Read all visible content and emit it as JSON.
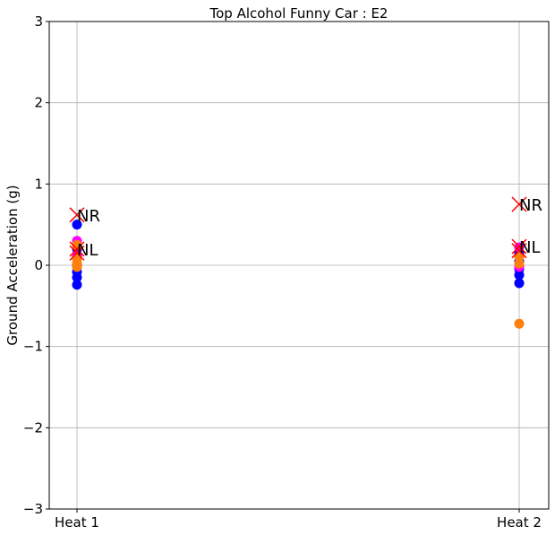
{
  "chart_data": {
    "type": "scatter",
    "title": "Top Alcohol Funny Car : E2",
    "xlabel": "",
    "ylabel": "Ground Acceleration (g)",
    "categories": [
      "Heat 1",
      "Heat 2"
    ],
    "ylim": [
      -3,
      3
    ],
    "yticks": [
      -3,
      -2,
      -1,
      0,
      1,
      2,
      3
    ],
    "grid": true,
    "colors": {
      "blue": "#0000ff",
      "magenta": "#ff00ff",
      "orange": "#ff7f0e",
      "red": "#ff0000"
    },
    "series": [
      {
        "color": "#0000ff",
        "marker": "circle",
        "points": [
          {
            "x": "Heat 1",
            "y": 0.5
          },
          {
            "x": "Heat 1",
            "y": 0.2
          },
          {
            "x": "Heat 1",
            "y": 0.1
          },
          {
            "x": "Heat 1",
            "y": 0.0
          },
          {
            "x": "Heat 1",
            "y": -0.08
          },
          {
            "x": "Heat 1",
            "y": -0.15
          },
          {
            "x": "Heat 1",
            "y": -0.24
          },
          {
            "x": "Heat 2",
            "y": 0.15
          },
          {
            "x": "Heat 2",
            "y": 0.05
          },
          {
            "x": "Heat 2",
            "y": -0.05
          },
          {
            "x": "Heat 2",
            "y": -0.12
          },
          {
            "x": "Heat 2",
            "y": -0.22
          }
        ]
      },
      {
        "color": "#ff00ff",
        "marker": "circle",
        "points": [
          {
            "x": "Heat 1",
            "y": 0.3
          },
          {
            "x": "Heat 1",
            "y": 0.12
          },
          {
            "x": "Heat 2",
            "y": 0.22
          },
          {
            "x": "Heat 2",
            "y": -0.02
          }
        ]
      },
      {
        "color": "#ff7f0e",
        "marker": "circle",
        "points": [
          {
            "x": "Heat 1",
            "y": 0.25
          },
          {
            "x": "Heat 1",
            "y": 0.08
          },
          {
            "x": "Heat 1",
            "y": 0.02
          },
          {
            "x": "Heat 1",
            "y": -0.02
          },
          {
            "x": "Heat 2",
            "y": 0.1
          },
          {
            "x": "Heat 2",
            "y": 0.02
          },
          {
            "x": "Heat 2",
            "y": -0.72
          }
        ]
      },
      {
        "color": "#ff0000",
        "marker": "x",
        "points": [
          {
            "x": "Heat 1",
            "y": 0.62
          },
          {
            "x": "Heat 1",
            "y": 0.2
          },
          {
            "x": "Heat 1",
            "y": 0.15
          },
          {
            "x": "Heat 2",
            "y": 0.75
          },
          {
            "x": "Heat 2",
            "y": 0.23
          },
          {
            "x": "Heat 2",
            "y": 0.18
          }
        ]
      }
    ],
    "annotations": [
      {
        "text": "NR",
        "x": "Heat 1",
        "y": 0.62
      },
      {
        "text": "NL",
        "x": "Heat 1",
        "y": 0.2
      },
      {
        "text": "NR",
        "x": "Heat 2",
        "y": 0.75
      },
      {
        "text": "NL",
        "x": "Heat 2",
        "y": 0.23
      }
    ]
  }
}
